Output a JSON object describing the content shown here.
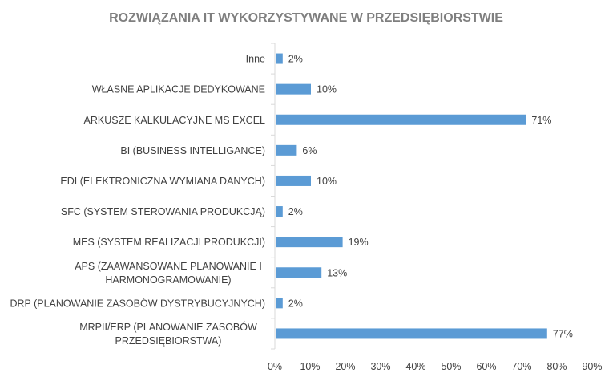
{
  "chart_data": {
    "type": "bar",
    "orientation": "horizontal",
    "title": "ROZWIĄZANIA IT WYKORZYSTYWANE W PRZEDSIĘBIORSTWIE",
    "categories": [
      [
        "Inne"
      ],
      [
        "WŁASNE APLIKACJE DEDYKOWANE"
      ],
      [
        "ARKUSZE KALKULACYJNE MS EXCEL"
      ],
      [
        "BI (BUSINESS INTELLIGANCE)"
      ],
      [
        "EDI (ELEKTRONICZNA WYMIANA DANYCH)"
      ],
      [
        "SFC (SYSTEM STEROWANIA PRODUKCJĄ)"
      ],
      [
        "MES (SYSTEM REALIZACJI PRODUKCJI)"
      ],
      [
        "APS (ZAAWANSOWANE PLANOWANIE I",
        "HARMONOGRAMOWANIE)"
      ],
      [
        "DRP (PLANOWANIE  ZASOBÓW DYSTRYBUCYJNYCH)"
      ],
      [
        "MRPII/ERP (PLANOWANIE  ZASOBÓW",
        "PRZEDSIĘBIORSTWA)"
      ]
    ],
    "values": [
      2,
      10,
      71,
      6,
      10,
      2,
      19,
      13,
      2,
      77
    ],
    "data_labels": [
      "2%",
      "10%",
      "71%",
      "6%",
      "10%",
      "2%",
      "19%",
      "13%",
      "2%",
      "77%"
    ],
    "xlim": [
      0,
      90
    ],
    "xticks": [
      "0%",
      "10%",
      "20%",
      "30%",
      "40%",
      "50%",
      "60%",
      "70%",
      "80%",
      "90%"
    ],
    "grid": false,
    "legend": "none",
    "bar_color": "#5b9bd5",
    "axis_color": "#d9d9d9"
  }
}
